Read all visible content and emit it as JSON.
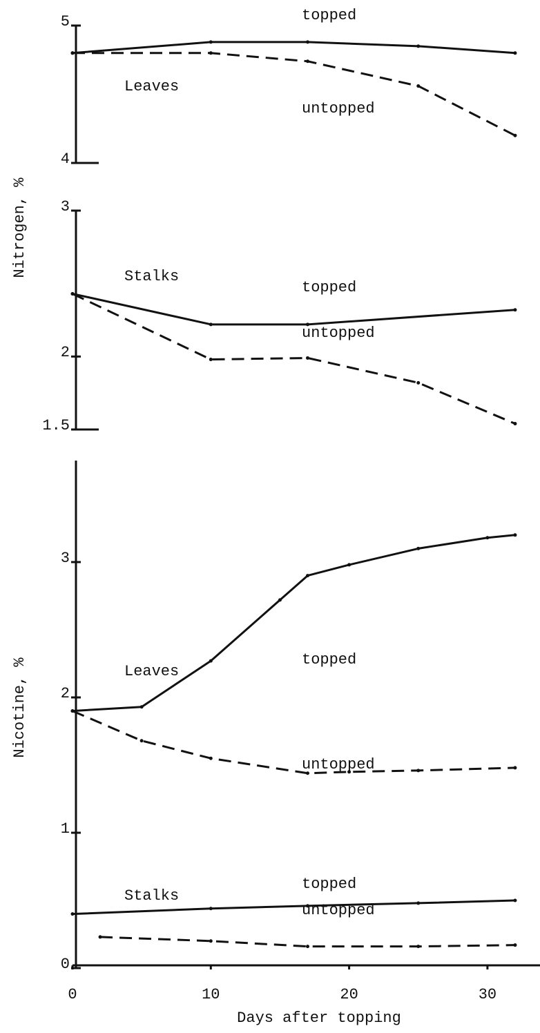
{
  "chart_data": [
    {
      "type": "line",
      "xlim": [
        0,
        33.5
      ],
      "ylim": [
        4,
        5
      ],
      "yticks": [
        4,
        5
      ],
      "groups": [
        {
          "label": "Leaves",
          "series": [
            {
              "name": "topped",
              "color": "#111111",
              "style": "solid",
              "x": [
                0,
                10,
                17,
                25,
                32
              ],
              "values": [
                4.8,
                4.88,
                4.88,
                4.85,
                4.8
              ]
            },
            {
              "name": "untopped",
              "color": "#111111",
              "style": "dashed",
              "x": [
                0,
                10,
                17,
                25,
                32
              ],
              "values": [
                4.8,
                4.8,
                4.74,
                4.56,
                4.2
              ]
            }
          ]
        }
      ]
    },
    {
      "type": "line",
      "ylabel": "Nitrogen, %",
      "xlim": [
        0,
        33.5
      ],
      "ylim": [
        1.5,
        3
      ],
      "yticks": [
        {
          "value": 1.5,
          "label": "1.5"
        },
        2,
        3
      ],
      "groups": [
        {
          "label": "Stalks",
          "series": [
            {
              "name": "topped",
              "color": "#111111",
              "style": "solid",
              "x": [
                0,
                10,
                17,
                32
              ],
              "values": [
                2.43,
                2.22,
                2.22,
                2.32
              ]
            },
            {
              "name": "untopped",
              "color": "#111111",
              "style": "dashed",
              "x": [
                0,
                10,
                17,
                25,
                32
              ],
              "values": [
                2.43,
                1.98,
                1.99,
                1.82,
                1.54
              ]
            }
          ]
        }
      ]
    },
    {
      "type": "line",
      "ylabel": "Nicotine, %",
      "xlabel": "Days after topping",
      "xlim": [
        0,
        33.5
      ],
      "xticks": [
        0,
        10,
        20,
        30
      ],
      "ylim": [
        0,
        3.75
      ],
      "yticks": [
        0,
        1,
        2,
        3
      ],
      "groups": [
        {
          "label": "Leaves",
          "series": [
            {
              "name": "topped",
              "color": "#111111",
              "style": "solid",
              "x": [
                0,
                5,
                10,
                15,
                17,
                20,
                25,
                30,
                32
              ],
              "values": [
                1.9,
                1.93,
                2.27,
                2.72,
                2.9,
                2.98,
                3.1,
                3.18,
                3.2
              ]
            },
            {
              "name": "untopped",
              "color": "#111111",
              "style": "dashed",
              "x": [
                0,
                5,
                10,
                17,
                20,
                25,
                32
              ],
              "values": [
                1.9,
                1.68,
                1.55,
                1.44,
                1.45,
                1.46,
                1.48
              ]
            }
          ]
        },
        {
          "label": "Stalks",
          "series": [
            {
              "name": "topped",
              "color": "#111111",
              "style": "solid",
              "x": [
                0,
                10,
                17,
                25,
                32
              ],
              "values": [
                0.4,
                0.44,
                0.46,
                0.48,
                0.5
              ]
            },
            {
              "name": "untopped",
              "color": "#111111",
              "style": "dashed",
              "x": [
                2,
                10,
                17,
                25,
                32
              ],
              "values": [
                0.23,
                0.2,
                0.16,
                0.16,
                0.17
              ]
            }
          ]
        }
      ]
    }
  ]
}
